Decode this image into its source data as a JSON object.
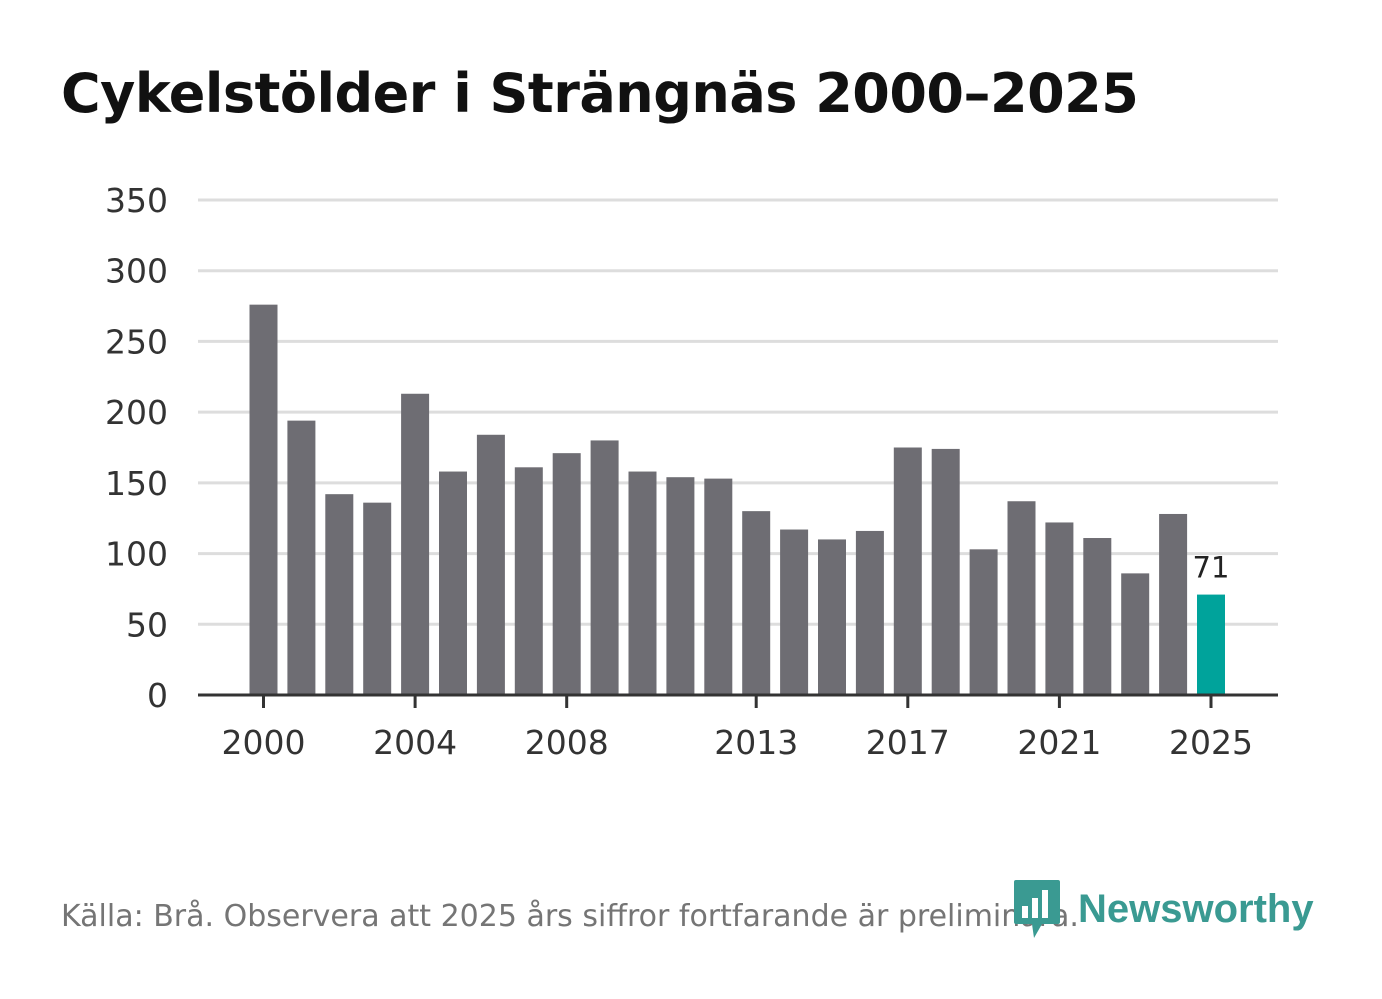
{
  "title": "Cykelstölder i Strängnäs 2000–2025",
  "source": "Källa: Brå. Observera att 2025 års siffror fortfarande är preliminära.",
  "logo": {
    "text": "Newsworthy",
    "icon": "newsworthy-chart-icon"
  },
  "colors": {
    "bar": "#6e6d73",
    "highlight": "#00a39b",
    "grid": "#dddddd",
    "axis": "#333333"
  },
  "chart_data": {
    "type": "bar",
    "title": "Cykelstölder i Strängnäs 2000–2025",
    "xlabel": "",
    "ylabel": "",
    "categories": [
      2000,
      2001,
      2002,
      2003,
      2004,
      2005,
      2006,
      2007,
      2008,
      2009,
      2010,
      2011,
      2012,
      2013,
      2014,
      2015,
      2016,
      2017,
      2018,
      2019,
      2020,
      2021,
      2022,
      2023,
      2024,
      2025
    ],
    "values": [
      276,
      194,
      142,
      136,
      213,
      158,
      184,
      161,
      171,
      180,
      158,
      154,
      153,
      130,
      117,
      110,
      116,
      175,
      174,
      103,
      137,
      122,
      111,
      86,
      128,
      71
    ],
    "ylim": [
      0,
      350
    ],
    "yticks": [
      0,
      50,
      100,
      150,
      200,
      250,
      300,
      350
    ],
    "xtick_labels": [
      "2000",
      "2004",
      "2008",
      "2013",
      "2017",
      "2021",
      "2025"
    ],
    "highlight": {
      "category": 2025,
      "label": "71"
    },
    "grid": true
  }
}
